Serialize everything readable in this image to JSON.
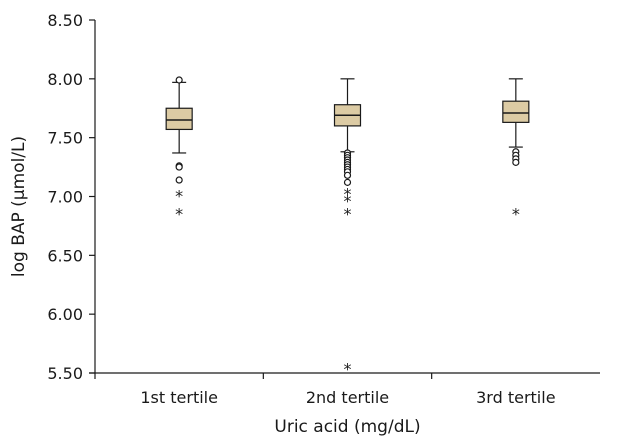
{
  "chart_data": {
    "type": "box",
    "xlabel": "Uric acid (mg/dL)",
    "ylabel": "log BAP (μmol/L)",
    "ylim": [
      5.5,
      8.5
    ],
    "yticks": [
      "5.50",
      "6.00",
      "6.50",
      "7.00",
      "7.50",
      "8.00",
      "8.50"
    ],
    "grid": false,
    "box_color": "#dccba4",
    "categories": [
      "1st tertile",
      "2nd tertile",
      "3rd tertile"
    ],
    "boxes": [
      {
        "category": "1st tertile",
        "whisker_low": 7.37,
        "q1": 7.57,
        "median": 7.65,
        "q3": 7.75,
        "whisker_high": 7.97,
        "outliers_circle": [
          7.99,
          7.26,
          7.25,
          7.14
        ],
        "outliers_star": [
          7.05,
          6.9
        ]
      },
      {
        "category": "2nd tertile",
        "whisker_low": 7.38,
        "q1": 7.6,
        "median": 7.69,
        "q3": 7.78,
        "whisker_high": 8.0,
        "outliers_circle": [
          7.37,
          7.35,
          7.33,
          7.31,
          7.29,
          7.27,
          7.25,
          7.23,
          7.21,
          7.18,
          7.12
        ],
        "outliers_star": [
          7.07,
          7.01,
          6.9,
          5.58
        ]
      },
      {
        "category": "3rd tertile",
        "whisker_low": 7.42,
        "q1": 7.63,
        "median": 7.71,
        "q3": 7.81,
        "whisker_high": 8.0,
        "outliers_circle": [
          7.38,
          7.35,
          7.32,
          7.29
        ],
        "outliers_star": [
          6.9
        ]
      }
    ]
  }
}
